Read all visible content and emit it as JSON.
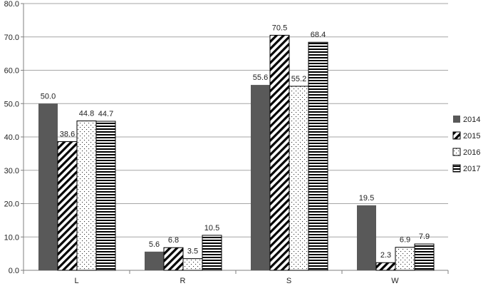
{
  "chart_data": {
    "type": "bar",
    "title": "",
    "xlabel": "",
    "ylabel": "",
    "categories": [
      "L",
      "R",
      "S",
      "W"
    ],
    "ylim": [
      0,
      80
    ],
    "yticks": [
      "0.0",
      "10.0",
      "20.0",
      "30.0",
      "40.0",
      "50.0",
      "60.0",
      "70.0",
      "80.0"
    ],
    "grid": true,
    "legend_position": "right",
    "series": [
      {
        "name": "2014",
        "values": [
          50.0,
          5.6,
          55.6,
          19.5
        ],
        "labels": [
          "50.0",
          "5.6",
          "55.6",
          "19.5"
        ],
        "pattern": "solid",
        "color": "#595959"
      },
      {
        "name": "2015",
        "values": [
          38.6,
          6.8,
          70.5,
          2.3
        ],
        "labels": [
          "38.6",
          "6.8",
          "70.5",
          "2.3"
        ],
        "pattern": "diagonal",
        "color": "#000000"
      },
      {
        "name": "2016",
        "values": [
          44.8,
          3.5,
          55.2,
          6.9
        ],
        "labels": [
          "44.8",
          "3.5",
          "55.2",
          "6.9"
        ],
        "pattern": "dots",
        "color": "#000000"
      },
      {
        "name": "2017",
        "values": [
          44.7,
          10.5,
          68.4,
          7.9
        ],
        "labels": [
          "44.7",
          "10.5",
          "68.4",
          "7.9"
        ],
        "pattern": "horizontal",
        "color": "#000000"
      }
    ]
  }
}
